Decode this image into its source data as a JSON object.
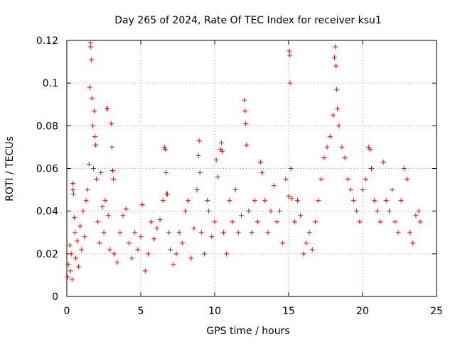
{
  "chart_data": {
    "type": "scatter",
    "title": "Day 265 of 2024, Rate Of TEC Index for receiver ksu1",
    "xlabel": "GPS time / hours",
    "ylabel": "ROTI / TECUs",
    "xlim": [
      0,
      25
    ],
    "ylim": [
      0,
      0.12
    ],
    "x_ticks": [
      0,
      5,
      10,
      15,
      20,
      25
    ],
    "y_ticks": [
      0,
      0.02,
      0.04,
      0.06,
      0.08,
      0.1,
      0.12
    ],
    "x_tick_labels": [
      "0",
      "5",
      "10",
      "15",
      "20",
      "25"
    ],
    "y_tick_labels": [
      "0",
      "0.02",
      "0.04",
      "0.06",
      "0.08",
      "0.1",
      "0.12"
    ],
    "grid": true,
    "marker": "plus",
    "marker_color": "#ff0000",
    "series": [
      {
        "name": "ROTI",
        "points": [
          [
            0.05,
            0.009
          ],
          [
            0.1,
            0.015
          ],
          [
            0.2,
            0.024
          ],
          [
            0.25,
            0.012
          ],
          [
            0.3,
            0.02
          ],
          [
            0.35,
            0.008
          ],
          [
            0.4,
            0.053
          ],
          [
            0.42,
            0.05
          ],
          [
            0.45,
            0.048
          ],
          [
            0.5,
            0.037
          ],
          [
            0.55,
            0.03
          ],
          [
            0.6,
            0.018
          ],
          [
            0.7,
            0.026
          ],
          [
            0.8,
            0.014
          ],
          [
            0.9,
            0.033
          ],
          [
            1.0,
            0.022
          ],
          [
            1.1,
            0.04
          ],
          [
            1.2,
            0.028
          ],
          [
            1.3,
            0.045
          ],
          [
            1.4,
            0.05
          ],
          [
            1.5,
            0.062
          ],
          [
            1.55,
            0.098
          ],
          [
            1.6,
            0.119
          ],
          [
            1.62,
            0.117
          ],
          [
            1.65,
            0.111
          ],
          [
            1.7,
            0.093
          ],
          [
            1.75,
            0.08
          ],
          [
            1.8,
            0.06
          ],
          [
            1.85,
            0.087
          ],
          [
            1.9,
            0.075
          ],
          [
            1.95,
            0.071
          ],
          [
            2.0,
            0.055
          ],
          [
            2.1,
            0.035
          ],
          [
            2.2,
            0.025
          ],
          [
            2.3,
            0.058
          ],
          [
            2.4,
            0.042
          ],
          [
            2.5,
            0.03
          ],
          [
            2.6,
            0.045
          ],
          [
            2.7,
            0.088
          ],
          [
            2.75,
            0.088
          ],
          [
            2.8,
            0.038
          ],
          [
            2.9,
            0.022
          ],
          [
            3.0,
            0.081
          ],
          [
            3.05,
            0.07
          ],
          [
            3.1,
            0.059
          ],
          [
            3.15,
            0.055
          ],
          [
            3.2,
            0.02
          ],
          [
            3.4,
            0.016
          ],
          [
            3.6,
            0.03
          ],
          [
            3.8,
            0.038
          ],
          [
            4.0,
            0.041
          ],
          [
            4.2,
            0.025
          ],
          [
            4.4,
            0.018
          ],
          [
            4.6,
            0.03
          ],
          [
            4.8,
            0.022
          ],
          [
            5.0,
            0.028
          ],
          [
            5.1,
            0.043
          ],
          [
            5.3,
            0.012
          ],
          [
            5.5,
            0.02
          ],
          [
            5.7,
            0.035
          ],
          [
            5.9,
            0.027
          ],
          [
            6.1,
            0.032
          ],
          [
            6.3,
            0.036
          ],
          [
            6.5,
            0.045
          ],
          [
            6.6,
            0.07
          ],
          [
            6.65,
            0.069
          ],
          [
            6.7,
            0.058
          ],
          [
            6.75,
            0.048
          ],
          [
            6.8,
            0.048
          ],
          [
            6.9,
            0.03
          ],
          [
            7.0,
            0.022
          ],
          [
            7.2,
            0.015
          ],
          [
            7.4,
            0.02
          ],
          [
            7.6,
            0.03
          ],
          [
            7.8,
            0.025
          ],
          [
            8.0,
            0.04
          ],
          [
            8.2,
            0.045
          ],
          [
            8.4,
            0.018
          ],
          [
            8.6,
            0.032
          ],
          [
            8.8,
            0.05
          ],
          [
            8.9,
            0.066
          ],
          [
            8.95,
            0.073
          ],
          [
            9.0,
            0.058
          ],
          [
            9.1,
            0.03
          ],
          [
            9.3,
            0.02
          ],
          [
            9.5,
            0.045
          ],
          [
            9.6,
            0.04
          ],
          [
            9.8,
            0.028
          ],
          [
            10.0,
            0.035
          ],
          [
            10.1,
            0.064
          ],
          [
            10.2,
            0.056
          ],
          [
            10.4,
            0.069
          ],
          [
            10.45,
            0.072
          ],
          [
            10.5,
            0.068
          ],
          [
            10.6,
            0.03
          ],
          [
            10.8,
            0.02
          ],
          [
            11.0,
            0.045
          ],
          [
            11.2,
            0.035
          ],
          [
            11.4,
            0.05
          ],
          [
            11.6,
            0.03
          ],
          [
            11.8,
            0.038
          ],
          [
            12.0,
            0.092
          ],
          [
            12.05,
            0.087
          ],
          [
            12.1,
            0.081
          ],
          [
            12.15,
            0.071
          ],
          [
            12.3,
            0.04
          ],
          [
            12.5,
            0.03
          ],
          [
            12.7,
            0.045
          ],
          [
            12.9,
            0.035
          ],
          [
            13.1,
            0.063
          ],
          [
            13.2,
            0.058
          ],
          [
            13.4,
            0.045
          ],
          [
            13.6,
            0.03
          ],
          [
            13.8,
            0.04
          ],
          [
            14.0,
            0.052
          ],
          [
            14.2,
            0.035
          ],
          [
            14.4,
            0.04
          ],
          [
            14.6,
            0.025
          ],
          [
            14.8,
            0.055
          ],
          [
            15.0,
            0.047
          ],
          [
            15.05,
            0.115
          ],
          [
            15.08,
            0.113
          ],
          [
            15.1,
            0.1
          ],
          [
            15.15,
            0.06
          ],
          [
            15.2,
            0.046
          ],
          [
            15.4,
            0.035
          ],
          [
            15.6,
            0.045
          ],
          [
            15.8,
            0.038
          ],
          [
            16.0,
            0.02
          ],
          [
            16.2,
            0.025
          ],
          [
            16.4,
            0.03
          ],
          [
            16.6,
            0.022
          ],
          [
            16.8,
            0.035
          ],
          [
            17.0,
            0.045
          ],
          [
            17.2,
            0.055
          ],
          [
            17.4,
            0.065
          ],
          [
            17.6,
            0.07
          ],
          [
            17.8,
            0.075
          ],
          [
            18.0,
            0.085
          ],
          [
            18.1,
            0.112
          ],
          [
            18.15,
            0.117
          ],
          [
            18.2,
            0.108
          ],
          [
            18.25,
            0.097
          ],
          [
            18.3,
            0.088
          ],
          [
            18.4,
            0.08
          ],
          [
            18.6,
            0.07
          ],
          [
            18.8,
            0.065
          ],
          [
            19.0,
            0.055
          ],
          [
            19.2,
            0.05
          ],
          [
            19.4,
            0.045
          ],
          [
            19.6,
            0.04
          ],
          [
            19.8,
            0.035
          ],
          [
            20.0,
            0.05
          ],
          [
            20.2,
            0.055
          ],
          [
            20.4,
            0.07
          ],
          [
            20.5,
            0.069
          ],
          [
            20.6,
            0.06
          ],
          [
            20.8,
            0.045
          ],
          [
            21.0,
            0.04
          ],
          [
            21.2,
            0.035
          ],
          [
            21.4,
            0.063
          ],
          [
            21.6,
            0.045
          ],
          [
            21.8,
            0.04
          ],
          [
            22.0,
            0.05
          ],
          [
            22.2,
            0.035
          ],
          [
            22.4,
            0.03
          ],
          [
            22.6,
            0.045
          ],
          [
            22.8,
            0.06
          ],
          [
            23.0,
            0.055
          ],
          [
            23.2,
            0.03
          ],
          [
            23.4,
            0.025
          ],
          [
            23.6,
            0.038
          ],
          [
            23.8,
            0.04
          ],
          [
            23.9,
            0.035
          ]
        ]
      }
    ]
  }
}
